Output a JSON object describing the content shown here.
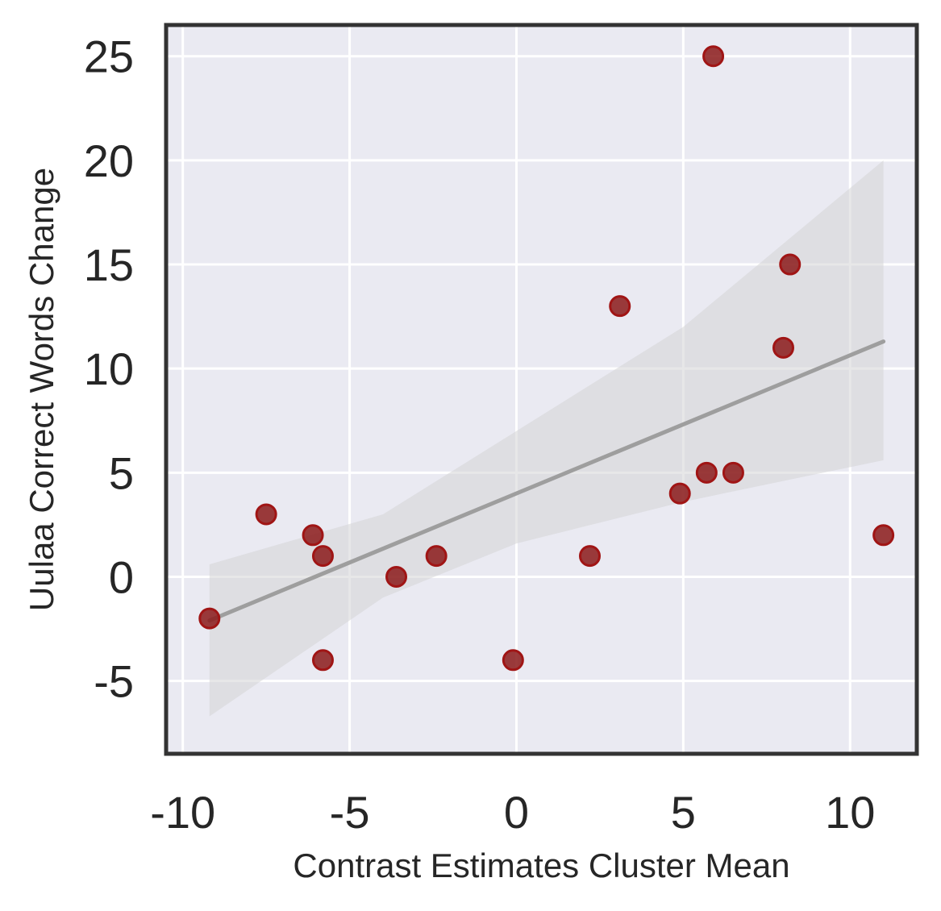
{
  "chart_data": {
    "type": "scatter",
    "title": "",
    "xlabel": "Contrast Estimates Cluster Mean",
    "ylabel": "Uulaa Correct Words Change",
    "xlim": [
      -10.5,
      12
    ],
    "ylim": [
      -8.5,
      26.5
    ],
    "x_ticks": [
      -10,
      -5,
      0,
      5,
      10
    ],
    "y_ticks": [
      -5,
      0,
      5,
      10,
      15,
      20,
      25
    ],
    "grid": true,
    "legend": "none",
    "points": [
      {
        "x": -9.2,
        "y": -2
      },
      {
        "x": -7.5,
        "y": 3
      },
      {
        "x": -6.1,
        "y": 2
      },
      {
        "x": -5.8,
        "y": 1
      },
      {
        "x": -5.8,
        "y": -4
      },
      {
        "x": -3.6,
        "y": 0
      },
      {
        "x": -2.4,
        "y": 1
      },
      {
        "x": -0.1,
        "y": -4
      },
      {
        "x": 2.2,
        "y": 1
      },
      {
        "x": 3.1,
        "y": 13
      },
      {
        "x": 4.9,
        "y": 4
      },
      {
        "x": 5.7,
        "y": 5
      },
      {
        "x": 5.9,
        "y": 25
      },
      {
        "x": 6.5,
        "y": 5
      },
      {
        "x": 8.0,
        "y": 11
      },
      {
        "x": 8.2,
        "y": 15
      },
      {
        "x": 11.0,
        "y": 2
      }
    ],
    "regression": {
      "x_range": [
        -9.2,
        11.0
      ],
      "y_start": -2.1,
      "y_end": 11.3
    },
    "confidence_band": {
      "upper": [
        [
          -9.2,
          0.6
        ],
        [
          -4.0,
          3.0
        ],
        [
          0.0,
          7.0
        ],
        [
          5.0,
          12.0
        ],
        [
          11.0,
          20.0
        ]
      ],
      "lower": [
        [
          -9.2,
          -6.7
        ],
        [
          -4.0,
          -1.0
        ],
        [
          0.0,
          1.6
        ],
        [
          5.0,
          3.6
        ],
        [
          11.0,
          5.6
        ]
      ]
    },
    "colors": {
      "point_fill": "#8b1a1a",
      "point_edge": "#a01515",
      "line": "#9e9e9e",
      "band": "#d3d3d6",
      "plot_bg": "#eaeaf2",
      "grid": "#ffffff",
      "frame": "#333333"
    }
  }
}
